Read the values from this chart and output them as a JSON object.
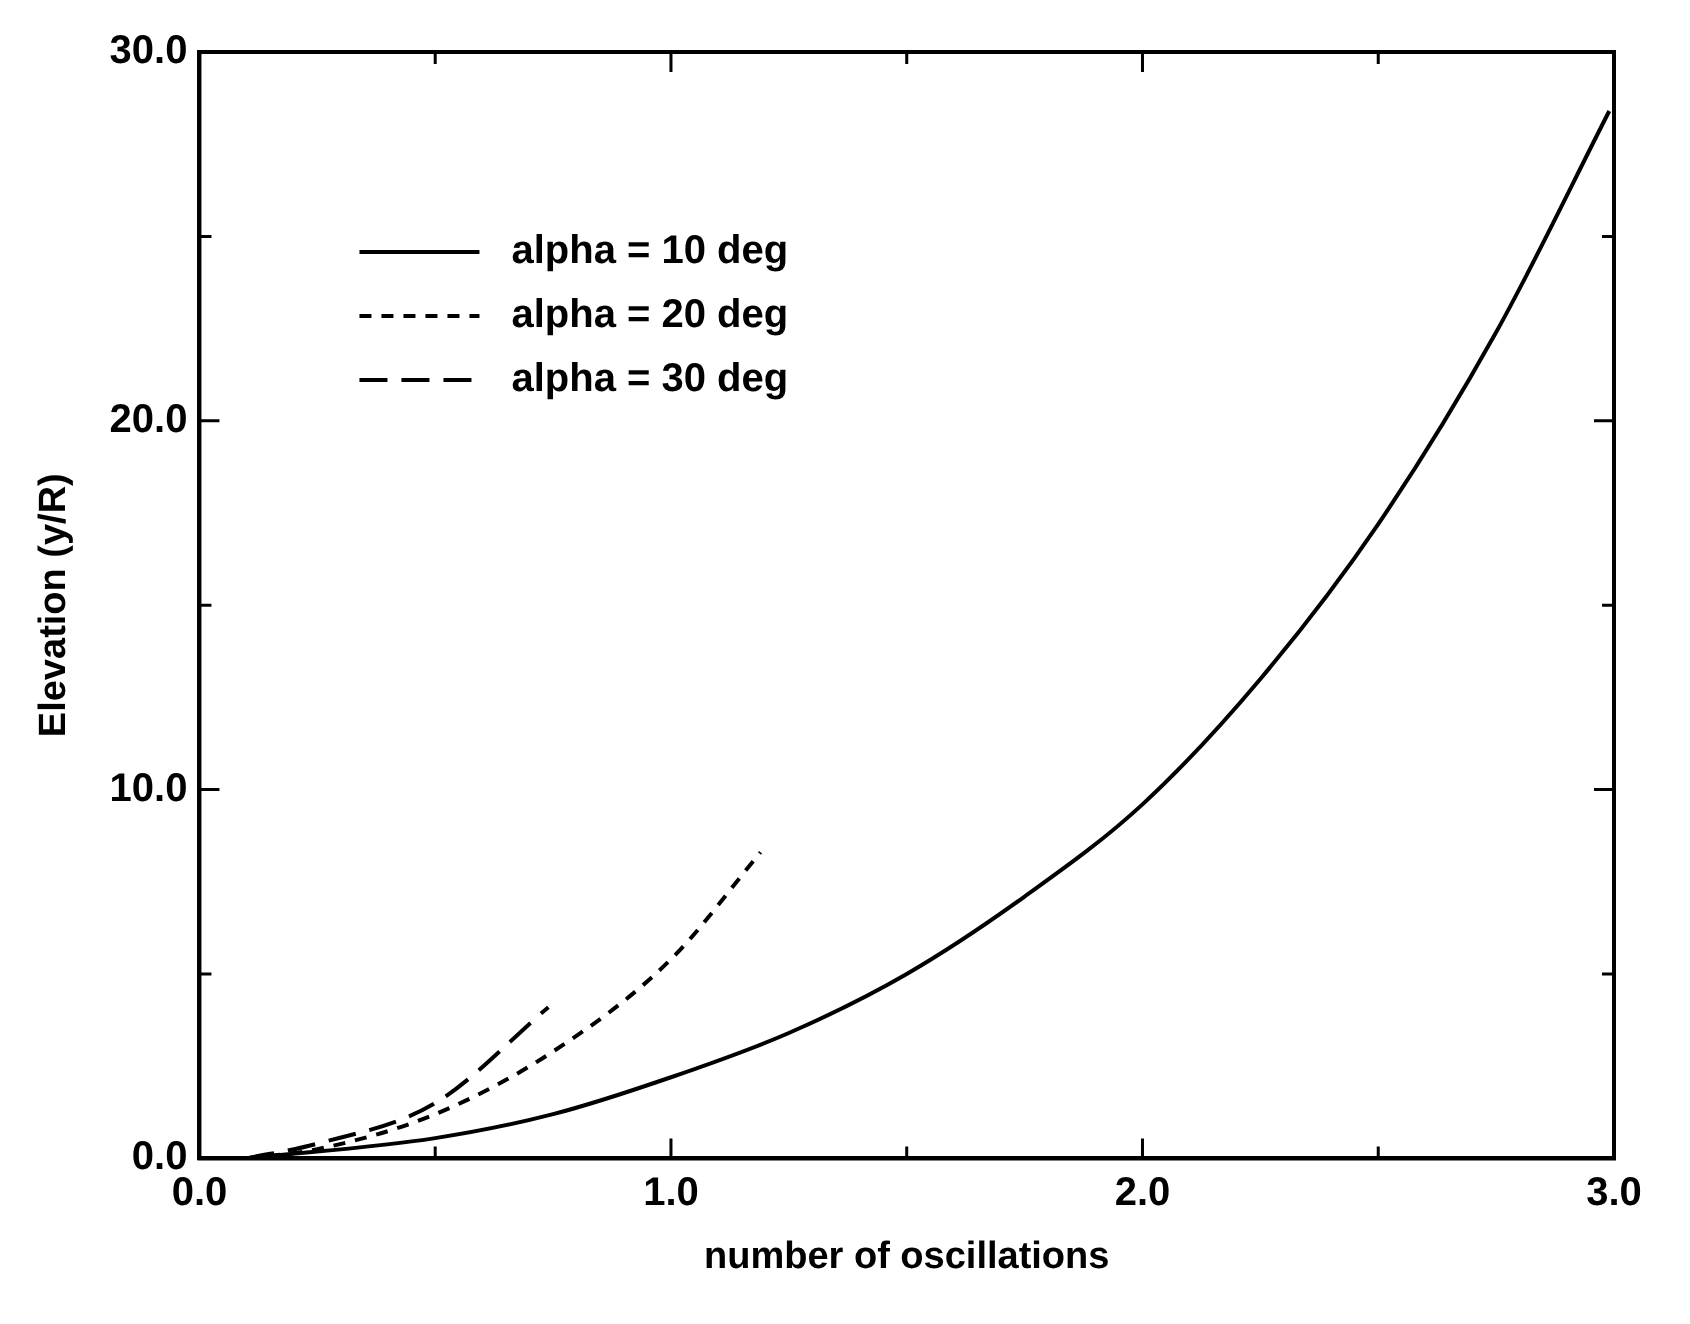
{
  "chart_data": {
    "type": "line",
    "xlabel": "number of oscillations",
    "ylabel": "Elevation (y/R)",
    "xlim": [
      0,
      3
    ],
    "ylim": [
      0,
      30
    ],
    "xticks": [
      {
        "value": 0,
        "label": "0.0"
      },
      {
        "value": 0.5,
        "label": null
      },
      {
        "value": 1,
        "label": "1.0"
      },
      {
        "value": 1.5,
        "label": null
      },
      {
        "value": 2,
        "label": "2.0"
      },
      {
        "value": 2.5,
        "label": null
      },
      {
        "value": 3,
        "label": "3.0"
      }
    ],
    "yticks": [
      {
        "value": 0,
        "label": "0.0"
      },
      {
        "value": 5,
        "label": null
      },
      {
        "value": 10,
        "label": "10.0"
      },
      {
        "value": 15,
        "label": null
      },
      {
        "value": 20,
        "label": "20.0"
      },
      {
        "value": 25,
        "label": null
      },
      {
        "value": 30,
        "label": "30.0"
      }
    ],
    "grid": false,
    "legend": "top left",
    "marker": "none",
    "series": [
      {
        "name": "alpha = 10 deg",
        "color": "#000000",
        "line_style": "solid",
        "x": [
          0.1,
          0.5,
          0.75,
          1.0,
          1.25,
          1.5,
          1.75,
          2.0,
          2.25,
          2.5,
          2.75,
          2.99
        ],
        "values": [
          0,
          0.55,
          1.2,
          2.2,
          3.4,
          5.0,
          7.1,
          9.6,
          13.0,
          17.2,
          22.4,
          28.4
        ]
      },
      {
        "name": "alpha = 20 deg",
        "color": "#000000",
        "line_style": "dotted",
        "x": [
          0.1,
          0.25,
          0.5,
          0.75,
          1.0,
          1.19
        ],
        "values": [
          0,
          0.25,
          1.2,
          2.9,
          5.4,
          8.3
        ]
      },
      {
        "name": "alpha = 30 deg",
        "color": "#000000",
        "line_style": "dashed",
        "x": [
          0.1,
          0.25,
          0.5,
          0.74
        ],
        "values": [
          0,
          0.4,
          1.5,
          4.1
        ]
      }
    ]
  }
}
